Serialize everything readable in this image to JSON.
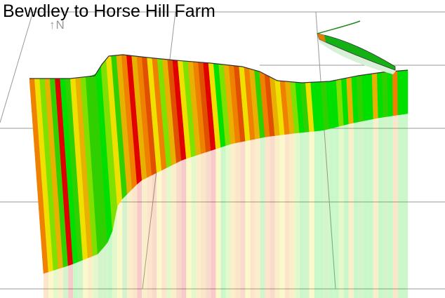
{
  "title": "Bewdley to Horse Hill Farm",
  "north_indicator": "↑N",
  "colors": {
    "grid": "#999999",
    "outline": "#333333",
    "gradient_scale": [
      "#00e000",
      "#30d000",
      "#80e000",
      "#f0e000",
      "#e8b000",
      "#f08000",
      "#e05000",
      "#e00000"
    ]
  },
  "strip_colors": [
    5,
    3,
    2,
    4,
    1,
    7,
    0,
    1,
    3,
    4,
    2,
    1,
    1,
    0,
    2,
    3,
    1,
    4,
    5,
    7,
    4,
    5,
    6,
    3,
    5,
    2,
    4,
    6,
    7,
    3,
    2,
    4,
    5,
    6,
    7,
    3,
    0,
    2,
    4,
    5,
    6,
    3,
    5,
    4,
    1,
    5,
    6,
    4,
    3,
    5,
    4,
    2,
    0,
    1,
    3,
    0,
    0,
    1,
    0,
    0,
    2,
    0,
    4,
    0,
    1,
    0,
    0,
    4,
    0,
    1,
    0,
    5,
    0,
    0
  ]
}
